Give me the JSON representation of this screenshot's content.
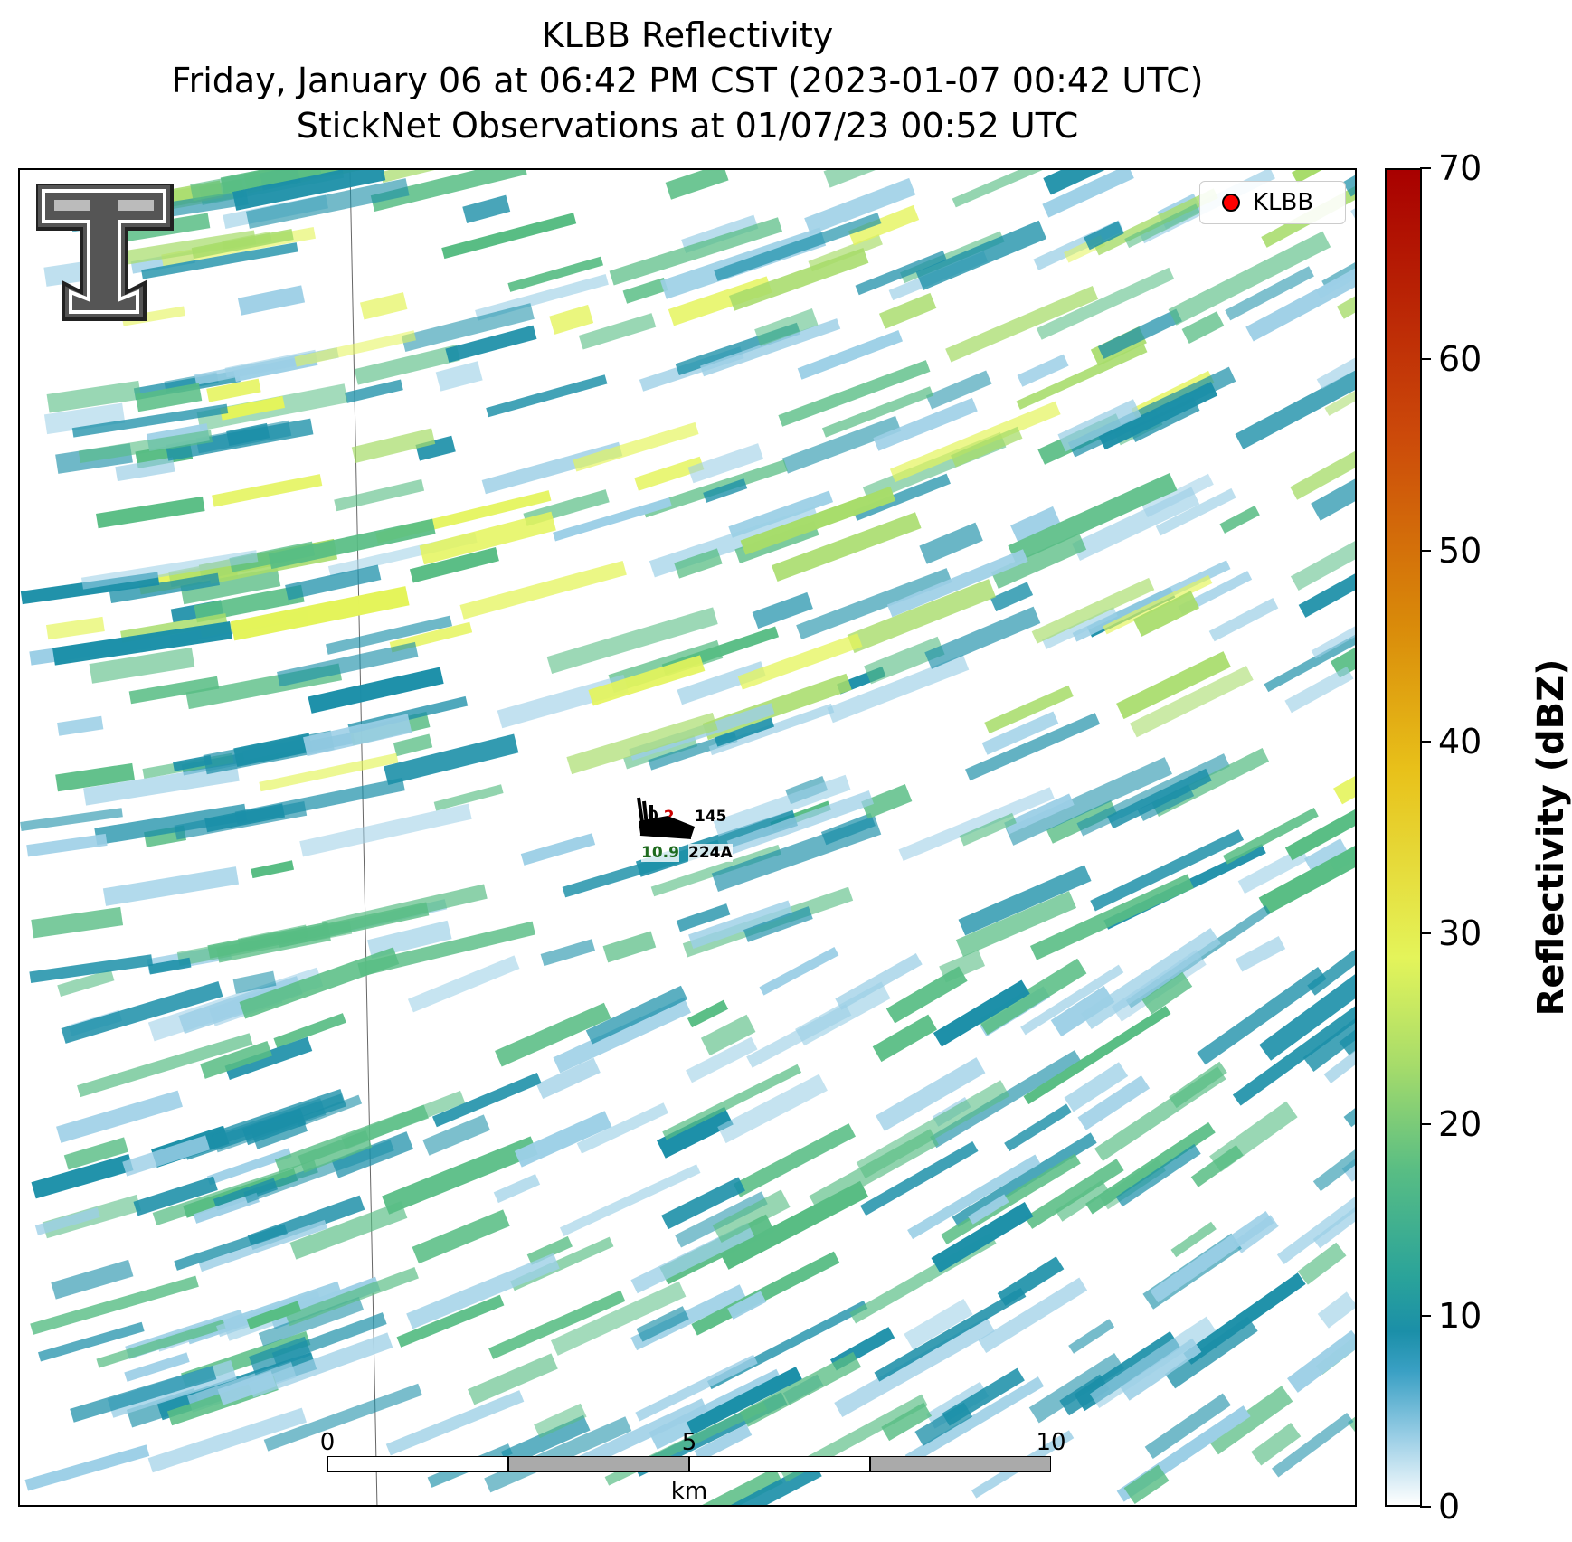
{
  "title": {
    "line1": "KLBB Reflectivity",
    "line2": "Friday, January 06 at 06:42 PM CST (2023-01-07 00:42 UTC)",
    "line3": "StickNet Observations at 01/07/23 00:52 UTC"
  },
  "legend": {
    "label": "KLBB",
    "marker_color": "#ff0000"
  },
  "colorbar": {
    "label": "Reflectivity (dBZ)",
    "ticks": [
      "0",
      "10",
      "20",
      "30",
      "40",
      "50",
      "60",
      "70"
    ],
    "range": [
      0,
      70
    ]
  },
  "scalebar": {
    "labels": [
      "0",
      "5",
      "10"
    ],
    "unit": "km"
  },
  "station": {
    "temp": "2",
    "temp_prefix": "0",
    "pressure": "145",
    "dewpoint": "10.9",
    "id": "224A"
  },
  "colors": {
    "light_blue": "#9ccfe6",
    "teal": "#1b8fa8",
    "green": "#58bd84",
    "lime": "#a7dc6a",
    "yellow": "#e4f45a"
  }
}
